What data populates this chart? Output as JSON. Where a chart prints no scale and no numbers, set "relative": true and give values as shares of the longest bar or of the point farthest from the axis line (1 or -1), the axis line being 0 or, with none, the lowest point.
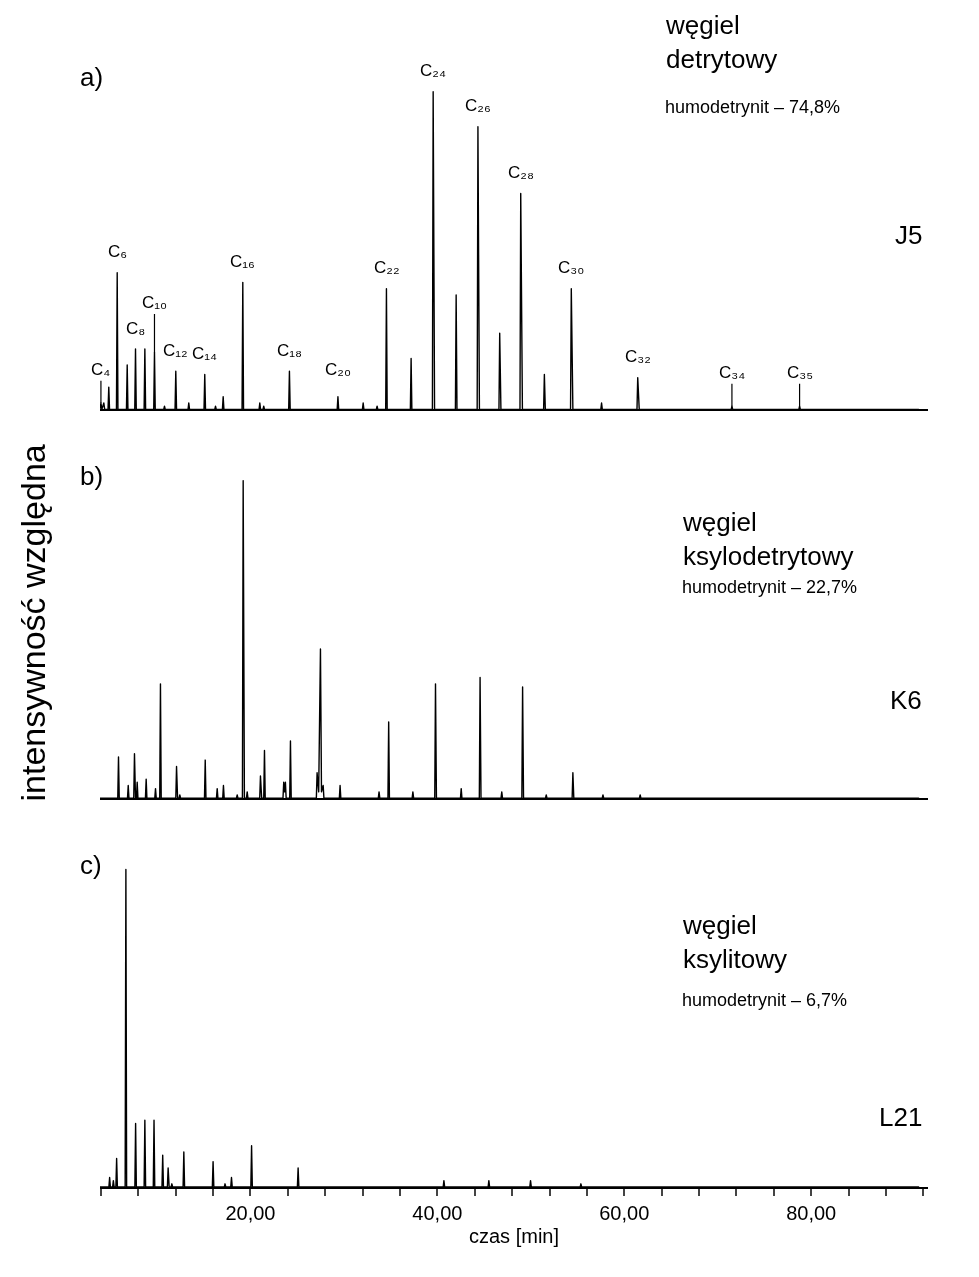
{
  "chart_data": [
    {
      "type": "line",
      "relative": true,
      "xlim": [
        3.9,
        92.5
      ],
      "tick_labels": false,
      "annotations": [
        "a)",
        "węgiel\ndetrytowy",
        "humodetrynit – 74,8%",
        "J5",
        {
          "text": "C₄",
          "x": 4.0,
          "y": 0.02
        },
        {
          "text": "C₆",
          "x": 5.74,
          "y": 0.43
        },
        {
          "text": "C₈",
          "x": 7.7,
          "y": 0.19
        },
        {
          "text": "C₁₀",
          "x": 9.73,
          "y": 0.18
        },
        {
          "text": "C₁₂",
          "x": 12.01,
          "y": 0.12
        },
        {
          "text": "C₁₄",
          "x": 15.11,
          "y": 0.11
        },
        {
          "text": "C₁₆",
          "x": 19.18,
          "y": 0.4
        },
        {
          "text": "C₁₈",
          "x": 24.17,
          "y": 0.12
        },
        {
          "text": "C₂₀",
          "x": 29.36,
          "y": 0.04
        },
        {
          "text": "C₂₂",
          "x": 34.55,
          "y": 0.38
        },
        {
          "text": "C₂₄",
          "x": 39.55,
          "y": 1.0
        },
        {
          "text": "C₂₆",
          "x": 44.34,
          "y": 0.89
        },
        {
          "text": "C₂₈",
          "x": 48.92,
          "y": 0.68
        },
        {
          "text": "C₃₀",
          "x": 54.33,
          "y": 0.38
        },
        {
          "text": "C₃₂",
          "x": 61.44,
          "y": 0.1
        },
        {
          "text": "C₃₄",
          "x": 71.52,
          "y": 0.01
        },
        {
          "text": "C₃₅",
          "x": 78.76,
          "y": 0.01
        }
      ],
      "series": [
        {
          "color": "#000000",
          "x": [
            3.9,
            4.0,
            4.1,
            4.31,
            4.4,
            4.76,
            4.84,
            4.92,
            5.66,
            5.74,
            5.82,
            6.73,
            6.81,
            6.89,
            7.62,
            7.7,
            7.78,
            8.62,
            8.7,
            8.78,
            9.65,
            9.73,
            9.81,
            10.72,
            10.8,
            10.88,
            11.93,
            12.01,
            12.09,
            13.32,
            13.4,
            13.48,
            15.03,
            15.11,
            15.19,
            16.18,
            16.26,
            16.34,
            17.0,
            17.08,
            17.16,
            19.1,
            19.18,
            19.26,
            20.92,
            21.0,
            21.08,
            21.34,
            21.42,
            21.5,
            24.09,
            24.17,
            24.25,
            29.28,
            29.36,
            29.44,
            31.98,
            32.06,
            32.14,
            33.47,
            33.55,
            33.63,
            34.47,
            34.55,
            34.63,
            37.11,
            37.19,
            37.27,
            39.47,
            39.55,
            39.7,
            41.93,
            42.01,
            42.1,
            44.26,
            44.34,
            44.5,
            46.59,
            46.67,
            46.8,
            48.84,
            48.92,
            49.1,
            51.37,
            51.45,
            51.55,
            54.25,
            54.33,
            54.5,
            57.49,
            57.57,
            57.65,
            61.36,
            61.44,
            61.6,
            71.44,
            71.52,
            71.6,
            78.68,
            78.76,
            78.84,
            91.5
          ],
          "values": [
            0,
            0.02,
            0,
            0.02,
            0,
            0,
            0.07,
            0,
            0,
            0.43,
            0,
            0,
            0.14,
            0,
            0,
            0.19,
            0,
            0,
            0.19,
            0,
            0,
            0.18,
            0,
            0,
            0.01,
            0,
            0,
            0.12,
            0,
            0,
            0.02,
            0,
            0,
            0.11,
            0,
            0,
            0.01,
            0,
            0,
            0.04,
            0,
            0,
            0.4,
            0,
            0,
            0.02,
            0,
            0,
            0.01,
            0,
            0,
            0.12,
            0,
            0,
            0.04,
            0,
            0,
            0.02,
            0,
            0,
            0.01,
            0,
            0,
            0.38,
            0,
            0,
            0.16,
            0,
            0,
            1.0,
            0,
            0,
            0.36,
            0,
            0,
            0.89,
            0,
            0,
            0.24,
            0,
            0,
            0.68,
            0,
            0,
            0.11,
            0,
            0,
            0.38,
            0,
            0,
            0.02,
            0,
            0,
            0.1,
            0,
            0,
            0.01,
            0,
            0,
            0.01,
            0,
            0
          ]
        }
      ]
    },
    {
      "type": "line",
      "relative": true,
      "xlim": [
        3.9,
        92.5
      ],
      "tick_labels": false,
      "ylabel": "intensywność względna",
      "annotations": [
        "b)",
        "węgiel\nksylodetrytowy",
        "humodetrynit – 22,7%",
        "K6"
      ],
      "series": [
        {
          "color": "#000000",
          "x": [
            3.9,
            5.8,
            5.88,
            5.96,
            6.84,
            6.92,
            7.0,
            7.51,
            7.59,
            7.7,
            7.8,
            7.88,
            7.96,
            8.76,
            8.84,
            8.92,
            9.76,
            9.84,
            9.92,
            10.29,
            10.37,
            10.45,
            12.01,
            12.09,
            12.2,
            12.36,
            12.44,
            12.52,
            15.08,
            15.16,
            15.24,
            16.36,
            16.44,
            16.52,
            17.03,
            17.11,
            17.19,
            18.5,
            18.58,
            18.66,
            19.14,
            19.22,
            19.35,
            19.57,
            19.65,
            19.73,
            20.99,
            21.07,
            21.2,
            21.42,
            21.5,
            21.58,
            23.48,
            23.56,
            23.65,
            23.74,
            23.82,
            24.2,
            24.28,
            24.36,
            27.05,
            27.13,
            27.3,
            27.49,
            27.6,
            27.78,
            27.86,
            29.51,
            29.59,
            29.67,
            33.68,
            33.76,
            33.84,
            34.71,
            34.79,
            34.87,
            37.3,
            37.38,
            37.46,
            39.72,
            39.8,
            39.9,
            42.47,
            42.55,
            42.63,
            44.49,
            44.57,
            44.67,
            46.81,
            46.89,
            46.97,
            49.04,
            49.12,
            49.22,
            51.57,
            51.65,
            51.73,
            54.42,
            54.5,
            54.6,
            57.64,
            57.72,
            57.8,
            61.62,
            61.7,
            61.78,
            91.5
          ],
          "values": [
            0,
            0,
            0.13,
            0,
            0,
            0.04,
            0,
            0,
            0.14,
            0,
            0,
            0.05,
            0,
            0,
            0.06,
            0,
            0,
            0.03,
            0,
            0,
            0.36,
            0,
            0,
            0.1,
            0,
            0,
            0.01,
            0,
            0,
            0.12,
            0,
            0,
            0.03,
            0,
            0,
            0.04,
            0,
            0,
            0.01,
            0,
            0,
            1.0,
            0,
            0,
            0.02,
            0,
            0,
            0.07,
            0,
            0,
            0.15,
            0,
            0,
            0.05,
            0.02,
            0.05,
            0,
            0,
            0.18,
            0,
            0,
            0.08,
            0.02,
            0.47,
            0.02,
            0.04,
            0,
            0,
            0.04,
            0,
            0,
            0.02,
            0,
            0,
            0.24,
            0,
            0,
            0.02,
            0,
            0,
            0.36,
            0,
            0,
            0.03,
            0,
            0,
            0.38,
            0,
            0,
            0.02,
            0,
            0,
            0.35,
            0,
            0,
            0.01,
            0,
            0,
            0.08,
            0,
            0,
            0.01,
            0,
            0,
            0.01,
            0,
            0
          ]
        }
      ]
    },
    {
      "type": "line",
      "relative": true,
      "xlim": [
        3.9,
        92.5
      ],
      "tick_labels": "x",
      "xlabel": "czas [min]",
      "xticks": [
        {
          "value": 4,
          "label": null
        },
        {
          "value": 8,
          "label": null
        },
        {
          "value": 12,
          "label": null
        },
        {
          "value": 16,
          "label": null
        },
        {
          "value": 20,
          "label": "20,00"
        },
        {
          "value": 24,
          "label": null
        },
        {
          "value": 28,
          "label": null
        },
        {
          "value": 32,
          "label": null
        },
        {
          "value": 36,
          "label": null
        },
        {
          "value": 40,
          "label": "40,00"
        },
        {
          "value": 44,
          "label": null
        },
        {
          "value": 48,
          "label": null
        },
        {
          "value": 52,
          "label": null
        },
        {
          "value": 56,
          "label": null
        },
        {
          "value": 60,
          "label": "60,00"
        },
        {
          "value": 64,
          "label": null
        },
        {
          "value": 68,
          "label": null
        },
        {
          "value": 72,
          "label": null
        },
        {
          "value": 76,
          "label": null
        },
        {
          "value": 80,
          "label": "80,00"
        },
        {
          "value": 84,
          "label": null
        },
        {
          "value": 88,
          "label": null
        },
        {
          "value": 92,
          "label": null
        }
      ],
      "annotations": [
        "c)",
        "węgiel\nksylitowy",
        "humodetrynit – 6,7%",
        "L21"
      ],
      "series": [
        {
          "color": "#000000",
          "x": [
            3.9,
            4.85,
            4.93,
            5.01,
            5.25,
            5.33,
            5.41,
            5.6,
            5.68,
            5.76,
            6.59,
            6.67,
            6.75,
            7.63,
            7.71,
            7.79,
            8.62,
            8.7,
            8.78,
            9.6,
            9.68,
            9.76,
            10.53,
            10.61,
            10.69,
            11.11,
            11.19,
            11.3,
            11.51,
            11.59,
            11.67,
            12.79,
            12.87,
            12.95,
            15.92,
            16.0,
            16.08,
            17.2,
            17.28,
            17.36,
            17.89,
            17.97,
            18.05,
            20.04,
            20.12,
            20.2,
            25.02,
            25.1,
            25.18,
            40.62,
            40.7,
            40.78,
            45.43,
            45.51,
            45.59,
            49.89,
            49.97,
            50.05,
            55.28,
            55.36,
            55.44,
            91.5
          ],
          "values": [
            0,
            0,
            0.03,
            0,
            0,
            0.02,
            0,
            0,
            0.09,
            0,
            0,
            1.0,
            0,
            0,
            0.2,
            0,
            0,
            0.21,
            0,
            0,
            0.21,
            0,
            0,
            0.1,
            0,
            0,
            0.06,
            0,
            0,
            0.01,
            0,
            0,
            0.11,
            0,
            0,
            0.08,
            0,
            0,
            0.01,
            0,
            0,
            0.03,
            0,
            0,
            0.13,
            0,
            0,
            0.06,
            0,
            0,
            0.02,
            0,
            0,
            0.02,
            0,
            0,
            0.02,
            0,
            0,
            0.01,
            0,
            0
          ]
        }
      ]
    }
  ]
}
